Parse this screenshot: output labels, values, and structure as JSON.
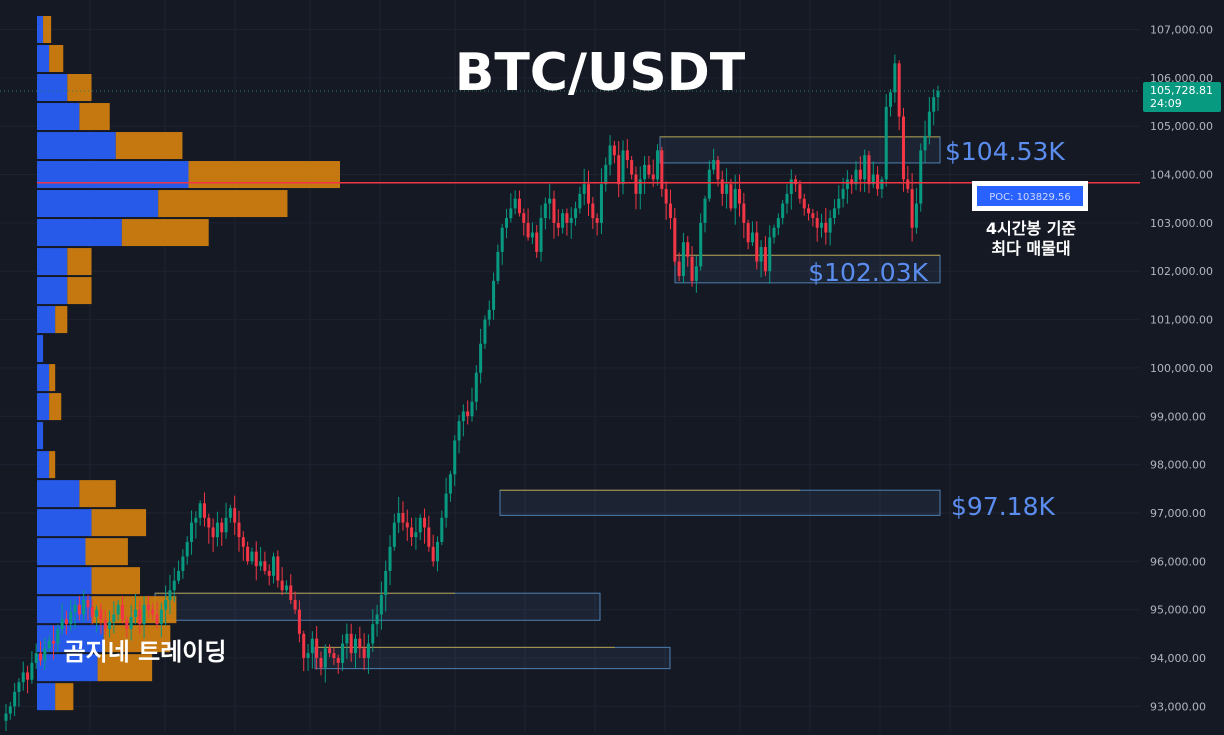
{
  "chart_data": {
    "type": "candlestick",
    "title": "BTC/USDT",
    "watermark": "곰지네 트레이딩",
    "y_axis": {
      "ylim": [
        92800,
        107300
      ],
      "tick_labels": [
        "107,000.00",
        "106,000.00",
        "105,000.00",
        "104,000.00",
        "103,000.00",
        "102,000.00",
        "101,000.00",
        "100,000.00",
        "99,000.00",
        "98,000.00",
        "97,000.00",
        "96,000.00",
        "95,000.00",
        "94,000.00",
        "93,000.00"
      ],
      "tick_values": [
        107000,
        106000,
        105000,
        104000,
        103000,
        102000,
        101000,
        100000,
        99000,
        98000,
        97000,
        96000,
        95000,
        94000,
        93000
      ]
    },
    "grid": true,
    "current_price": {
      "value": 105728.81,
      "label": "105,728.81",
      "countdown": "24:09",
      "color": "#089981"
    },
    "poc": {
      "value": 103829.56,
      "label": "POC: 103829.56",
      "line_color": "#f23645"
    },
    "annotation": {
      "line1": "4시간봉 기준",
      "line2": "최다 매물대"
    },
    "levels": [
      {
        "label": "$104.53K",
        "value": 104530
      },
      {
        "label": "$102.03K",
        "value": 102030
      },
      {
        "label": "$97.18K",
        "value": 97180
      }
    ],
    "zones": [
      {
        "from": 104240,
        "to": 104780,
        "x_start": 0.16,
        "x_end": 0.44
      },
      {
        "from": 101760,
        "to": 102330,
        "x_start": 0.175,
        "x_end": 0.44
      },
      {
        "from": 96950,
        "to": 97470,
        "x_start": 0.0,
        "x_end": 0.44
      },
      {
        "from": 94780,
        "to": 95340,
        "x_start": -0.345,
        "x_end": 0.1
      },
      {
        "from": 93780,
        "to": 94220,
        "x_start": -0.185,
        "x_end": 0.17
      }
    ],
    "volume_profile": [
      {
        "price": 107000,
        "buy": 3,
        "sell": 4
      },
      {
        "price": 106400,
        "buy": 6,
        "sell": 7
      },
      {
        "price": 105800,
        "buy": 15,
        "sell": 12
      },
      {
        "price": 105200,
        "buy": 21,
        "sell": 15
      },
      {
        "price": 104600,
        "buy": 39,
        "sell": 33
      },
      {
        "price": 104000,
        "buy": 75,
        "sell": 75
      },
      {
        "price": 103400,
        "buy": 60,
        "sell": 64
      },
      {
        "price": 102800,
        "buy": 42,
        "sell": 43
      },
      {
        "price": 102200,
        "buy": 15,
        "sell": 12
      },
      {
        "price": 101600,
        "buy": 15,
        "sell": 12
      },
      {
        "price": 101000,
        "buy": 9,
        "sell": 6
      },
      {
        "price": 100400,
        "buy": 3,
        "sell": 0
      },
      {
        "price": 99800,
        "buy": 6,
        "sell": 3
      },
      {
        "price": 99200,
        "buy": 6,
        "sell": 6
      },
      {
        "price": 98600,
        "buy": 3,
        "sell": 0
      },
      {
        "price": 98000,
        "buy": 6,
        "sell": 3
      },
      {
        "price": 97400,
        "buy": 21,
        "sell": 18
      },
      {
        "price": 96800,
        "buy": 27,
        "sell": 27
      },
      {
        "price": 96200,
        "buy": 24,
        "sell": 21
      },
      {
        "price": 95600,
        "buy": 27,
        "sell": 24
      },
      {
        "price": 95000,
        "buy": 27,
        "sell": 42
      },
      {
        "price": 94400,
        "buy": 33,
        "sell": 33
      },
      {
        "price": 93800,
        "buy": 30,
        "sell": 27
      },
      {
        "price": 93200,
        "buy": 9,
        "sell": 9
      }
    ],
    "close_series": [
      92850,
      93000,
      93300,
      93500,
      93700,
      93550,
      93900,
      94100,
      93950,
      94200,
      94350,
      94300,
      94600,
      94800,
      94700,
      94950,
      95100,
      94900,
      95200,
      95050,
      94850,
      95000,
      94800,
      94600,
      94750,
      94900,
      95100,
      94800,
      94600,
      94850,
      95000,
      94700,
      95100,
      95000,
      94900,
      94700,
      95000,
      95200,
      95400,
      95600,
      95800,
      96100,
      96400,
      96800,
      96900,
      97200,
      96900,
      96700,
      96500,
      96800,
      96600,
      96900,
      97100,
      96800,
      96500,
      96300,
      96000,
      96200,
      95900,
      96000,
      95800,
      95700,
      96100,
      95600,
      95400,
      95500,
      95200,
      95000,
      94500,
      94000,
      94100,
      94400,
      94000,
      93800,
      94200,
      94100,
      94000,
      93900,
      94300,
      94500,
      94100,
      94400,
      94200,
      94000,
      94300,
      94700,
      94900,
      95300,
      95800,
      96300,
      96800,
      97000,
      96800,
      96700,
      96500,
      96600,
      96900,
      96700,
      96300,
      96000,
      96400,
      96900,
      97400,
      97800,
      98500,
      98900,
      99100,
      99000,
      99300,
      99900,
      100500,
      101000,
      101200,
      101800,
      102400,
      102900,
      103100,
      103300,
      103500,
      103200,
      103000,
      102700,
      102800,
      102400,
      103100,
      103400,
      103500,
      103000,
      102900,
      103200,
      103000,
      103100,
      103300,
      103600,
      103800,
      103400,
      103100,
      103000,
      103800,
      104200,
      104600,
      104400,
      103800,
      104500,
      104300,
      104000,
      103600,
      103900,
      104200,
      104000,
      103900,
      104500,
      103700,
      103400,
      103100,
      102200,
      101900,
      102600,
      102300,
      101800,
      102100,
      103000,
      103500,
      104100,
      104300,
      103900,
      103600,
      103800,
      103300,
      103700,
      103400,
      103000,
      102600,
      102800,
      102200,
      102500,
      102000,
      102700,
      102900,
      103100,
      103400,
      103600,
      103900,
      103800,
      103500,
      103300,
      103200,
      103100,
      102900,
      103000,
      102800,
      103100,
      103300,
      103500,
      103700,
      103900,
      103800,
      104100,
      103900,
      104400,
      103800,
      104000,
      103700,
      103900,
      105400,
      105700,
      106300,
      105200,
      103900,
      103700,
      102900,
      103400,
      104500,
      104800,
      105300,
      105600,
      105728.81
    ],
    "volume_bars": [
      0,
      0,
      0,
      0,
      0,
      0,
      0,
      0,
      0,
      0,
      0,
      0,
      0,
      0,
      0,
      0,
      0,
      0,
      0,
      0,
      0,
      0,
      0,
      0,
      0,
      0,
      0,
      0,
      0,
      0,
      0,
      0,
      0,
      0,
      0,
      0,
      0,
      0,
      0,
      0,
      0,
      0,
      0,
      0,
      0,
      0,
      0,
      0,
      0,
      0,
      0,
      0,
      0,
      0,
      0,
      0,
      0,
      0,
      0,
      0,
      0,
      0,
      0,
      0,
      0,
      0,
      0,
      0,
      0,
      0,
      0,
      0,
      0,
      0,
      0,
      0,
      0,
      0,
      0,
      0,
      0,
      0,
      0,
      0,
      0,
      0,
      0,
      0,
      0,
      0,
      0,
      0,
      0,
      0,
      0,
      0,
      0,
      0,
      0,
      0,
      0,
      0,
      0,
      0,
      0,
      0,
      0,
      0,
      0,
      0,
      0,
      0,
      0,
      0,
      0,
      0,
      0,
      0,
      0,
      0,
      0,
      0,
      0,
      0,
      0,
      0,
      0,
      0,
      0,
      0,
      0,
      0,
      0,
      0,
      0,
      0,
      0,
      0,
      0,
      0,
      0,
      0,
      0,
      0,
      0,
      0,
      0,
      0,
      0,
      0,
      0,
      0,
      0,
      0,
      0,
      0,
      0,
      0,
      0,
      0,
      0,
      0,
      0,
      0,
      0,
      0,
      0,
      0,
      0,
      0,
      0,
      0,
      0,
      0,
      0,
      0,
      0,
      0,
      0,
      0,
      0,
      0,
      0,
      0,
      0,
      0,
      0,
      0,
      0,
      0,
      0,
      0,
      0,
      0,
      0,
      0,
      0,
      0,
      0,
      0,
      0,
      0,
      0,
      0,
      0,
      0,
      0,
      0,
      0,
      0,
      0,
      0,
      0,
      0,
      0,
      0,
      0,
      0,
      0,
      0,
      0,
      0,
      0,
      0,
      0
    ]
  },
  "colors": {
    "background": "#151924",
    "grid": "#1e2230",
    "up": "#089981",
    "down": "#f23645",
    "profile_buy": "#2962ff",
    "profile_sell": "#d7830d",
    "level_text": "#5b8def",
    "axis_text": "#b2b5be",
    "zone_yellow": "#c8a028",
    "zone_blue": "#4f7fb0",
    "current_line": "#2e7d6b"
  }
}
